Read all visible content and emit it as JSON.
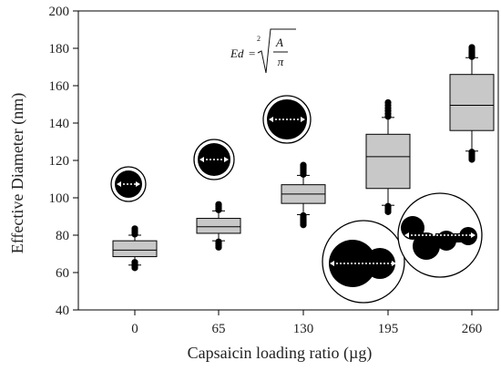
{
  "chart_data": {
    "type": "box",
    "xlabel": "Capsaicin loading ratio (µg)",
    "ylabel": "Effective Diameter (nm)",
    "ylim": [
      40,
      200
    ],
    "yticks": [
      40,
      60,
      80,
      100,
      120,
      140,
      160,
      180,
      200
    ],
    "categories": [
      "0",
      "65",
      "130",
      "195",
      "260"
    ],
    "boxes": [
      {
        "category": "0",
        "whisker_low": 64,
        "q1": 68.5,
        "median": 72,
        "q3": 77,
        "whisker_high": 80,
        "outliers_low": [
          62.5,
          63.5,
          64.5,
          65.5
        ],
        "outliers_high": [
          80.5,
          81.5,
          82.5,
          83.5
        ]
      },
      {
        "category": "65",
        "whisker_low": 77,
        "q1": 81,
        "median": 84.5,
        "q3": 89,
        "whisker_high": 93,
        "outliers_low": [
          73.5,
          74.5,
          75.5,
          76.5
        ],
        "outliers_high": [
          93.5,
          94.5,
          95.5,
          96.5
        ]
      },
      {
        "category": "130",
        "whisker_low": 91,
        "q1": 97,
        "median": 102,
        "q3": 107,
        "whisker_high": 112,
        "outliers_low": [
          85.5,
          86.5,
          87.5,
          88.5,
          89.5,
          90.5
        ],
        "outliers_high": [
          112.5,
          113.5,
          114.5,
          115.5,
          116.5,
          117.5
        ]
      },
      {
        "category": "195",
        "whisker_low": 96,
        "q1": 105,
        "median": 122,
        "q3": 134,
        "whisker_high": 143,
        "outliers_low": [
          92.5,
          93.5,
          94.5,
          95.5
        ],
        "outliers_high": [
          143.5,
          145,
          146.5,
          148,
          149.5,
          151
        ]
      },
      {
        "category": "260",
        "whisker_low": 125,
        "q1": 136,
        "median": 149.5,
        "q3": 166,
        "whisker_high": 175,
        "outliers_low": [
          120.5,
          121.5,
          122.5,
          123.5,
          124.5
        ],
        "outliers_high": [
          175.5,
          176.5,
          177.5,
          178.5,
          179.5,
          180.5
        ]
      }
    ],
    "box_color": "#c8c8c8",
    "grid": false,
    "legend": "none",
    "equation": {
      "lhs": "Ed",
      "index": "2",
      "numerator": "A",
      "denominator": "π"
    }
  }
}
